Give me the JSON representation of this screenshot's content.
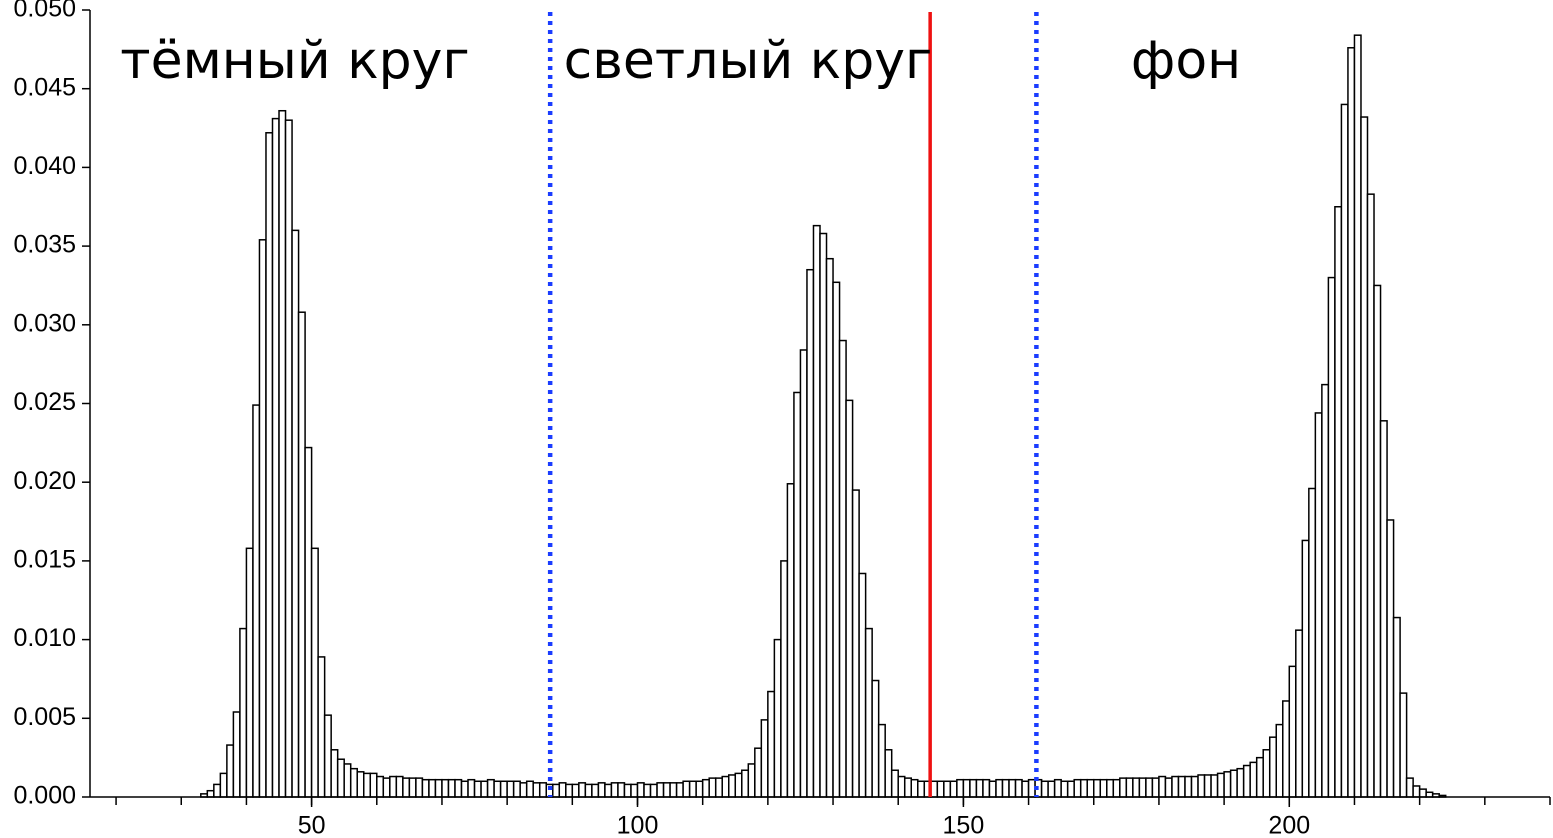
{
  "chart_data": {
    "type": "histogram",
    "region_labels": [
      "тёмный круг",
      "светлый круг",
      "фон"
    ],
    "bins": [
      33,
      34,
      35,
      36,
      37,
      38,
      39,
      40,
      41,
      42,
      43,
      44,
      45,
      46,
      47,
      48,
      49,
      50,
      51,
      52,
      53,
      54,
      55,
      56,
      57,
      58,
      59,
      60,
      61,
      62,
      63,
      64,
      65,
      66,
      67,
      68,
      69,
      70,
      71,
      72,
      73,
      74,
      75,
      76,
      77,
      78,
      79,
      80,
      81,
      82,
      83,
      84,
      85,
      86,
      87,
      88,
      89,
      90,
      91,
      92,
      93,
      94,
      95,
      96,
      97,
      98,
      99,
      100,
      101,
      102,
      103,
      104,
      105,
      106,
      107,
      108,
      109,
      110,
      111,
      112,
      113,
      114,
      115,
      116,
      117,
      118,
      119,
      120,
      121,
      122,
      123,
      124,
      125,
      126,
      127,
      128,
      129,
      130,
      131,
      132,
      133,
      134,
      135,
      136,
      137,
      138,
      139,
      140,
      141,
      142,
      143,
      144,
      145,
      146,
      147,
      148,
      149,
      150,
      151,
      152,
      153,
      154,
      155,
      156,
      157,
      158,
      159,
      160,
      161,
      162,
      163,
      164,
      165,
      166,
      167,
      168,
      169,
      170,
      171,
      172,
      173,
      174,
      175,
      176,
      177,
      178,
      179,
      180,
      181,
      182,
      183,
      184,
      185,
      186,
      187,
      188,
      189,
      190,
      191,
      192,
      193,
      194,
      195,
      196,
      197,
      198,
      199,
      200,
      201,
      202,
      203,
      204,
      205,
      206,
      207,
      208,
      209,
      210,
      211,
      212,
      213,
      214,
      215,
      216,
      217,
      218,
      219,
      220,
      221,
      222,
      223,
      224
    ],
    "values": [
      0.0002,
      0.0004,
      0.0008,
      0.0015,
      0.0033,
      0.0054,
      0.0107,
      0.0158,
      0.0249,
      0.0354,
      0.0422,
      0.0431,
      0.0436,
      0.043,
      0.036,
      0.0308,
      0.0222,
      0.0158,
      0.0089,
      0.0052,
      0.003,
      0.0024,
      0.0021,
      0.0018,
      0.0016,
      0.0015,
      0.0015,
      0.0013,
      0.0012,
      0.0013,
      0.0013,
      0.0012,
      0.0012,
      0.0012,
      0.0011,
      0.0011,
      0.0011,
      0.0011,
      0.0011,
      0.0011,
      0.001,
      0.0011,
      0.001,
      0.001,
      0.0011,
      0.001,
      0.001,
      0.001,
      0.001,
      0.0009,
      0.001,
      0.0009,
      0.0009,
      0.0008,
      0.0008,
      0.0009,
      0.0008,
      0.0008,
      0.0009,
      0.0008,
      0.0008,
      0.0009,
      0.0008,
      0.0009,
      0.0009,
      0.0008,
      0.0008,
      0.0009,
      0.0008,
      0.0008,
      0.0009,
      0.0009,
      0.0009,
      0.0009,
      0.001,
      0.001,
      0.001,
      0.0011,
      0.0012,
      0.0012,
      0.0013,
      0.0014,
      0.0015,
      0.0017,
      0.0021,
      0.0031,
      0.0049,
      0.0067,
      0.01,
      0.015,
      0.0199,
      0.0257,
      0.0284,
      0.0335,
      0.0363,
      0.0358,
      0.0342,
      0.0327,
      0.029,
      0.0252,
      0.0195,
      0.0142,
      0.0107,
      0.0074,
      0.0046,
      0.003,
      0.0017,
      0.0013,
      0.0012,
      0.0011,
      0.001,
      0.001,
      0.001,
      0.001,
      0.001,
      0.001,
      0.0011,
      0.0011,
      0.0011,
      0.0011,
      0.0011,
      0.001,
      0.0011,
      0.0011,
      0.0011,
      0.0011,
      0.001,
      0.0011,
      0.0011,
      0.001,
      0.001,
      0.0011,
      0.001,
      0.001,
      0.0011,
      0.0011,
      0.0011,
      0.0011,
      0.0011,
      0.0011,
      0.0011,
      0.0012,
      0.0012,
      0.0012,
      0.0012,
      0.0012,
      0.0012,
      0.0013,
      0.0012,
      0.0013,
      0.0013,
      0.0013,
      0.0013,
      0.0014,
      0.0014,
      0.0014,
      0.0015,
      0.0016,
      0.0017,
      0.0018,
      0.002,
      0.0022,
      0.0025,
      0.003,
      0.0038,
      0.0046,
      0.0061,
      0.0083,
      0.0106,
      0.0163,
      0.0196,
      0.0244,
      0.0262,
      0.033,
      0.0375,
      0.044,
      0.0476,
      0.0484,
      0.0432,
      0.0383,
      0.0325,
      0.0239,
      0.0176,
      0.0114,
      0.0066,
      0.0012,
      0.0007,
      0.0005,
      0.0003,
      0.0002,
      0.0001
    ],
    "color": "#ffffff",
    "edgecolor": "#000000",
    "xlim": [
      16,
      240
    ],
    "xticks": [
      50,
      100,
      150,
      200
    ],
    "xminorticks": [
      20,
      30,
      40,
      50,
      60,
      70,
      80,
      90,
      100,
      110,
      120,
      130,
      140,
      150,
      160,
      170,
      180,
      190,
      200,
      210,
      220,
      230,
      240
    ],
    "ylim": [
      0,
      0.05
    ],
    "yticks": [
      {
        "value": 0,
        "label": "0.000"
      },
      {
        "value": 0.005,
        "label": "0.005"
      },
      {
        "value": 0.01,
        "label": "0.010"
      },
      {
        "value": 0.015,
        "label": "0.015"
      },
      {
        "value": 0.02,
        "label": "0.020"
      },
      {
        "value": 0.025,
        "label": "0.025"
      },
      {
        "value": 0.03,
        "label": "0.030"
      },
      {
        "value": 0.035,
        "label": "0.035"
      },
      {
        "value": 0.04,
        "label": "0.040"
      },
      {
        "value": 0.045,
        "label": "0.045"
      },
      {
        "value": 0.05,
        "label": "0.050"
      }
    ],
    "vlines": [
      {
        "x": 86.6,
        "color": "#1a3cff",
        "style": "dotted"
      },
      {
        "x": 144.9,
        "color": "#ee1111",
        "style": "solid"
      },
      {
        "x": 161.2,
        "color": "#1a3cff",
        "style": "dotted"
      }
    ]
  }
}
